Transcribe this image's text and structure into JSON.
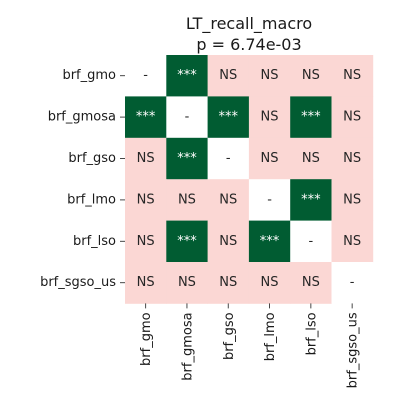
{
  "chart_data": {
    "type": "heatmap",
    "title": "LT_recall_macro",
    "subtitle": "p = 6.74e-03",
    "row_labels": [
      "brf_gmo",
      "brf_gmosa",
      "brf_gso",
      "brf_lmo",
      "brf_lso",
      "brf_sgso_us"
    ],
    "col_labels": [
      "brf_gmo",
      "brf_gmosa",
      "brf_gso",
      "brf_lmo",
      "brf_lso",
      "brf_sgso_us"
    ],
    "cells": [
      [
        "-",
        "***",
        "NS",
        "NS",
        "NS",
        "NS"
      ],
      [
        "***",
        "-",
        "***",
        "NS",
        "***",
        "NS"
      ],
      [
        "NS",
        "***",
        "-",
        "NS",
        "NS",
        "NS"
      ],
      [
        "NS",
        "NS",
        "NS",
        "-",
        "***",
        "NS"
      ],
      [
        "NS",
        "***",
        "NS",
        "***",
        "-",
        "NS"
      ],
      [
        "NS",
        "NS",
        "NS",
        "NS",
        "NS",
        "-"
      ]
    ],
    "colors": {
      "significant": "#015c32",
      "not_significant": "#fbd7d4",
      "diagonal": "#ffffff",
      "text_on_dark": "#ffffff",
      "text_on_light": "#262626"
    }
  }
}
